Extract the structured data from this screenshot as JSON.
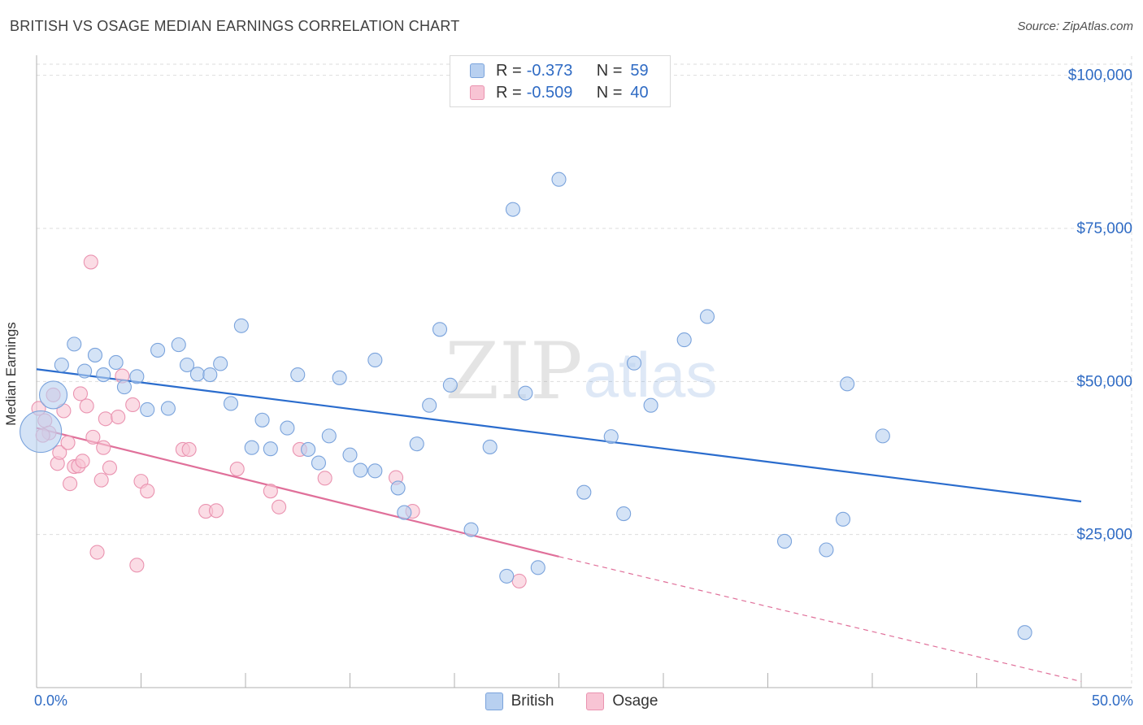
{
  "title": "BRITISH VS OSAGE MEDIAN EARNINGS CORRELATION CHART",
  "source": "Source: ZipAtlas.com",
  "watermark": {
    "zip": "ZIP",
    "atlas": "atlas"
  },
  "legend": {
    "rows": [
      {
        "r_label": "R =",
        "r_value": "-0.373",
        "n_label": "N =",
        "n_value": "59"
      },
      {
        "r_label": "R =",
        "r_value": "-0.509",
        "n_label": "N =",
        "n_value": "40"
      }
    ]
  },
  "colors": {
    "british_fill": "#b8d0f0",
    "british_stroke": "#7aa3dc",
    "british_line": "#2a6ccd",
    "osage_fill": "#f8c4d4",
    "osage_stroke": "#ea93b0",
    "osage_line": "#e0709a",
    "axis_text": "#2f6bc4",
    "grid": "#dddddd"
  },
  "chart_data": {
    "type": "scatter",
    "title": "BRITISH VS OSAGE MEDIAN EARNINGS CORRELATION CHART",
    "xlabel": "",
    "ylabel": "Median Earnings",
    "xlim": [
      0,
      50
    ],
    "ylim": [
      0,
      105000
    ],
    "x_tick_labels": [
      "0.0%",
      "50.0%"
    ],
    "y_ticks": [
      25000,
      50000,
      75000,
      100000
    ],
    "y_tick_labels": [
      "$25,000",
      "$50,000",
      "$75,000",
      "$100,000"
    ],
    "grid": true,
    "legend_position": "top-center",
    "series": [
      {
        "name": "British",
        "R": -0.373,
        "N": 59,
        "trend": {
          "x": [
            0,
            50
          ],
          "y": [
            52000,
            30400
          ]
        },
        "points": [
          {
            "x": 0.2,
            "y": 41800,
            "s": 3
          },
          {
            "x": 0.8,
            "y": 47800,
            "s": 2
          },
          {
            "x": 1.2,
            "y": 52700
          },
          {
            "x": 1.8,
            "y": 56100
          },
          {
            "x": 2.3,
            "y": 51700
          },
          {
            "x": 2.8,
            "y": 54300
          },
          {
            "x": 3.2,
            "y": 51100
          },
          {
            "x": 3.8,
            "y": 53100
          },
          {
            "x": 4.2,
            "y": 49100
          },
          {
            "x": 4.8,
            "y": 50800
          },
          {
            "x": 5.3,
            "y": 45400
          },
          {
            "x": 5.8,
            "y": 55100
          },
          {
            "x": 6.3,
            "y": 45600
          },
          {
            "x": 6.8,
            "y": 56000
          },
          {
            "x": 7.2,
            "y": 52700
          },
          {
            "x": 7.7,
            "y": 51200
          },
          {
            "x": 8.3,
            "y": 51100
          },
          {
            "x": 8.8,
            "y": 52900
          },
          {
            "x": 9.3,
            "y": 46400
          },
          {
            "x": 9.8,
            "y": 59100
          },
          {
            "x": 10.3,
            "y": 39200
          },
          {
            "x": 10.8,
            "y": 43700
          },
          {
            "x": 11.2,
            "y": 39000
          },
          {
            "x": 12.0,
            "y": 42400
          },
          {
            "x": 12.5,
            "y": 51100
          },
          {
            "x": 13.0,
            "y": 38900
          },
          {
            "x": 13.5,
            "y": 36700
          },
          {
            "x": 14.0,
            "y": 41100
          },
          {
            "x": 14.5,
            "y": 50600
          },
          {
            "x": 15.0,
            "y": 38000
          },
          {
            "x": 15.5,
            "y": 35500
          },
          {
            "x": 16.2,
            "y": 35400
          },
          {
            "x": 16.2,
            "y": 53500
          },
          {
            "x": 17.3,
            "y": 32600
          },
          {
            "x": 17.6,
            "y": 28600
          },
          {
            "x": 18.2,
            "y": 39800
          },
          {
            "x": 18.8,
            "y": 46100
          },
          {
            "x": 19.3,
            "y": 58500
          },
          {
            "x": 19.8,
            "y": 49400
          },
          {
            "x": 20.8,
            "y": 25800
          },
          {
            "x": 21.7,
            "y": 39300
          },
          {
            "x": 22.5,
            "y": 18200
          },
          {
            "x": 22.8,
            "y": 78100
          },
          {
            "x": 23.4,
            "y": 48100
          },
          {
            "x": 24.0,
            "y": 19600
          },
          {
            "x": 25.0,
            "y": 83000
          },
          {
            "x": 26.2,
            "y": 31900
          },
          {
            "x": 27.5,
            "y": 41000
          },
          {
            "x": 28.1,
            "y": 28400
          },
          {
            "x": 28.6,
            "y": 53000
          },
          {
            "x": 29.4,
            "y": 46100
          },
          {
            "x": 31.0,
            "y": 56800
          },
          {
            "x": 32.1,
            "y": 60600
          },
          {
            "x": 35.8,
            "y": 23900
          },
          {
            "x": 37.8,
            "y": 22500
          },
          {
            "x": 38.6,
            "y": 27500
          },
          {
            "x": 38.8,
            "y": 49600
          },
          {
            "x": 40.5,
            "y": 41100
          },
          {
            "x": 47.3,
            "y": 9000
          }
        ]
      },
      {
        "name": "Osage",
        "R": -0.509,
        "N": 40,
        "trend": {
          "x": [
            0,
            25
          ],
          "y": [
            42400,
            21400
          ]
        },
        "trend_extension": {
          "x": [
            25,
            50
          ],
          "y": [
            21400,
            1000
          ]
        },
        "points": [
          {
            "x": 0.1,
            "y": 45600
          },
          {
            "x": 0.4,
            "y": 43600
          },
          {
            "x": 0.6,
            "y": 41600
          },
          {
            "x": 0.8,
            "y": 47800
          },
          {
            "x": 1.0,
            "y": 36600
          },
          {
            "x": 1.1,
            "y": 38400
          },
          {
            "x": 1.3,
            "y": 45200
          },
          {
            "x": 1.5,
            "y": 40000
          },
          {
            "x": 1.6,
            "y": 33300
          },
          {
            "x": 1.8,
            "y": 36100
          },
          {
            "x": 2.0,
            "y": 36200
          },
          {
            "x": 2.1,
            "y": 48000
          },
          {
            "x": 2.2,
            "y": 37000
          },
          {
            "x": 2.4,
            "y": 46000
          },
          {
            "x": 2.6,
            "y": 69500
          },
          {
            "x": 2.7,
            "y": 40900
          },
          {
            "x": 2.9,
            "y": 22100
          },
          {
            "x": 3.1,
            "y": 33900
          },
          {
            "x": 3.2,
            "y": 39200
          },
          {
            "x": 3.3,
            "y": 43900
          },
          {
            "x": 3.5,
            "y": 35900
          },
          {
            "x": 3.9,
            "y": 44200
          },
          {
            "x": 4.1,
            "y": 50900
          },
          {
            "x": 4.6,
            "y": 46200
          },
          {
            "x": 4.8,
            "y": 20000
          },
          {
            "x": 5.0,
            "y": 33700
          },
          {
            "x": 5.3,
            "y": 32100
          },
          {
            "x": 7.0,
            "y": 38900
          },
          {
            "x": 7.3,
            "y": 38900
          },
          {
            "x": 8.1,
            "y": 28800
          },
          {
            "x": 8.6,
            "y": 28900
          },
          {
            "x": 9.6,
            "y": 35700
          },
          {
            "x": 11.2,
            "y": 32100
          },
          {
            "x": 11.6,
            "y": 29500
          },
          {
            "x": 12.6,
            "y": 38900
          },
          {
            "x": 13.8,
            "y": 34200
          },
          {
            "x": 17.2,
            "y": 34300
          },
          {
            "x": 18.0,
            "y": 28800
          },
          {
            "x": 23.1,
            "y": 17400
          },
          {
            "x": 0.3,
            "y": 41200
          }
        ]
      }
    ]
  },
  "bottom_legend": [
    "British",
    "Osage"
  ]
}
